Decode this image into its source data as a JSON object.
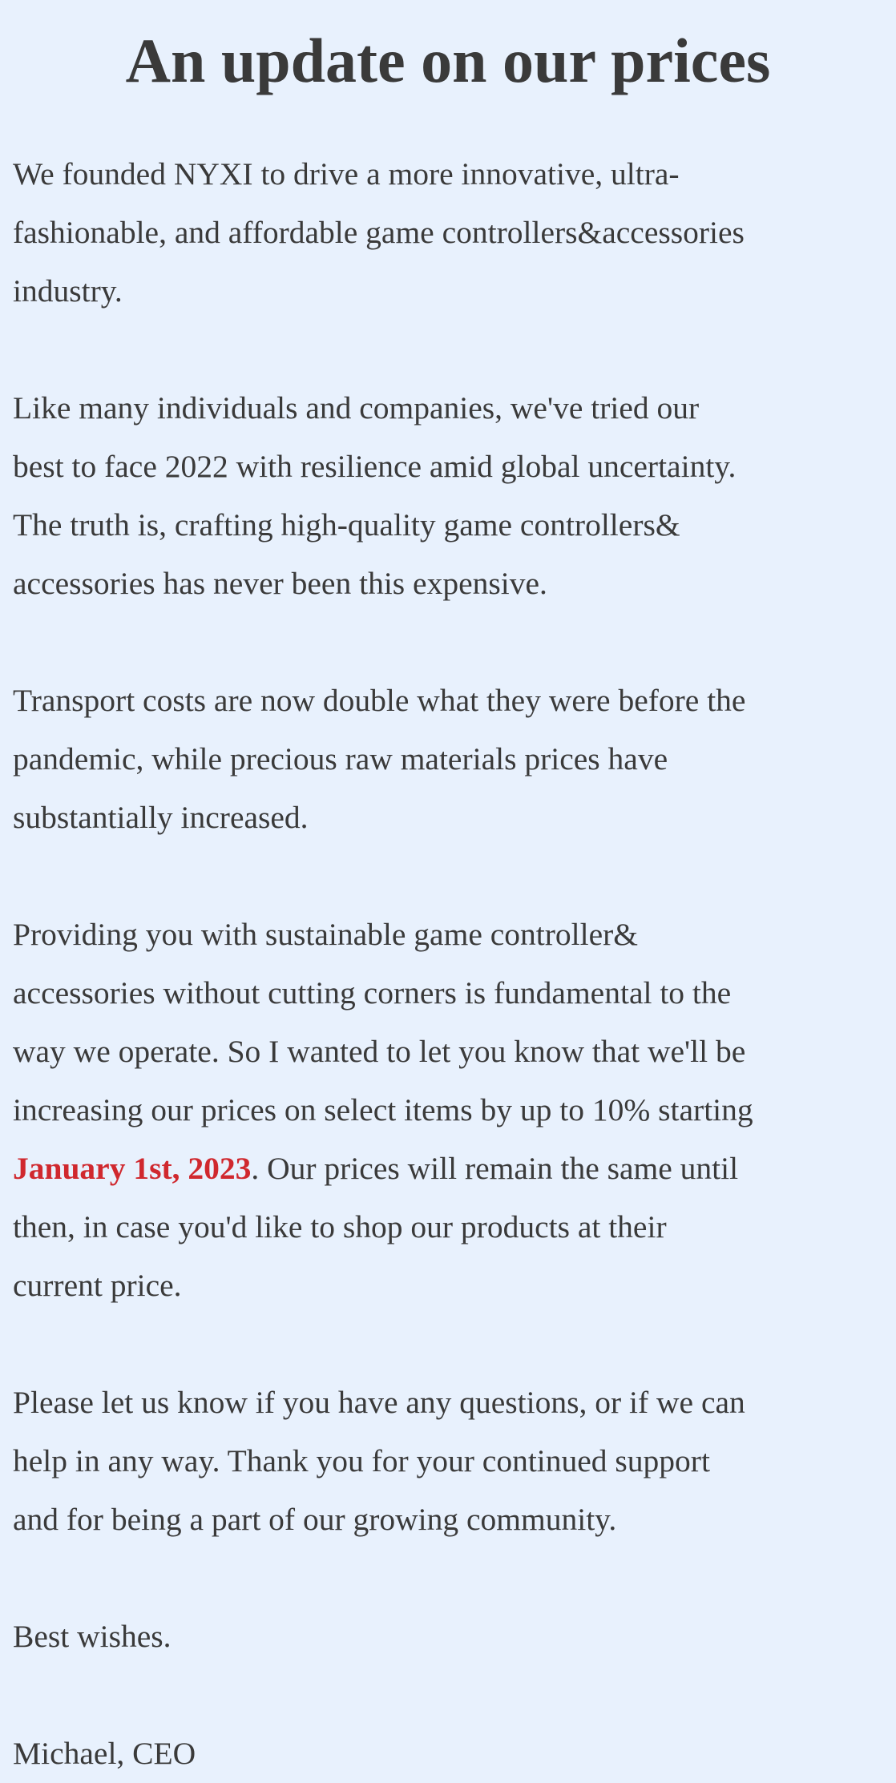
{
  "title": "An update on our prices",
  "highlight_color": "#d0282e",
  "paragraphs": [
    {
      "lines": [
        [
          {
            "t": "We founded NYXI to drive a more innovative, ultra-"
          }
        ],
        [
          {
            "t": "fashionable, and affordable game controllers&accessories"
          }
        ],
        [
          {
            "t": "industry."
          }
        ]
      ]
    },
    {
      "lines": [
        [
          {
            "t": "Like many individuals and companies, we've tried our"
          }
        ],
        [
          {
            "t": "best to face 2022 with resilience amid global uncertainty."
          }
        ],
        [
          {
            "t": "The truth is, crafting high-quality game controllers&"
          }
        ],
        [
          {
            "t": "accessories has never been this expensive."
          }
        ]
      ]
    },
    {
      "lines": [
        [
          {
            "t": "Transport costs are now double what they were before the"
          }
        ],
        [
          {
            "t": "pandemic, while precious raw materials prices have"
          }
        ],
        [
          {
            "t": "substantially increased."
          }
        ]
      ]
    },
    {
      "lines": [
        [
          {
            "t": "Providing you with sustainable game controller&"
          }
        ],
        [
          {
            "t": "accessories without cutting corners is fundamental to the"
          }
        ],
        [
          {
            "t": "way we operate. So I wanted to let you know that we'll be"
          }
        ],
        [
          {
            "t": "increasing our prices on select items by up to 10% starting"
          }
        ],
        [
          {
            "t": "January 1st, 2023",
            "highlight": true
          },
          {
            "t": ". Our prices will remain the same until"
          }
        ],
        [
          {
            "t": "then, in case you'd like to shop our products at their"
          }
        ],
        [
          {
            "t": "current price."
          }
        ]
      ]
    },
    {
      "lines": [
        [
          {
            "t": "Please let us know if you have any questions, or if we can"
          }
        ],
        [
          {
            "t": "help in any way. Thank you for your continued support"
          }
        ],
        [
          {
            "t": "and for being a part of our growing community."
          }
        ]
      ]
    },
    {
      "lines": [
        [
          {
            "t": "Best wishes."
          }
        ]
      ]
    },
    {
      "lines": [
        [
          {
            "t": "Michael, CEO"
          }
        ]
      ]
    }
  ]
}
